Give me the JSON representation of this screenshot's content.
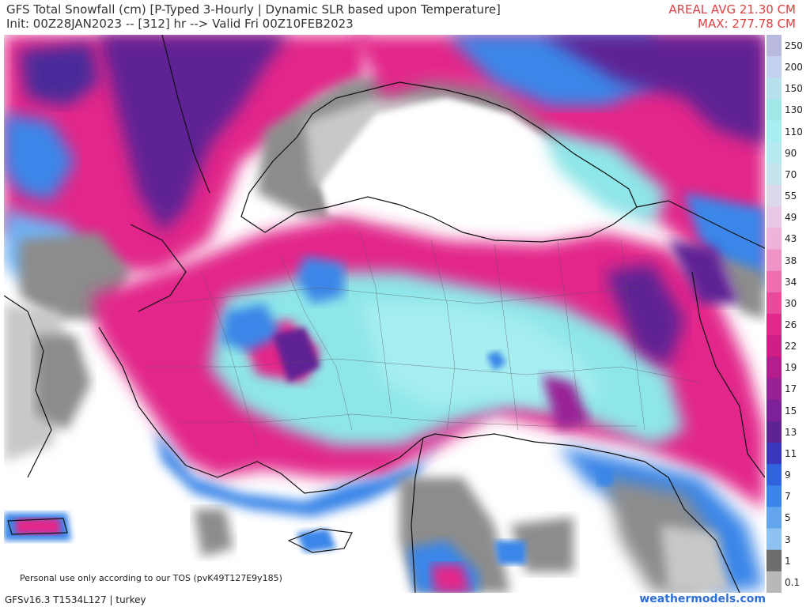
{
  "header": {
    "title": "GFS Total Snowfall (cm) [P-Typed 3-Hourly | Dynamic SLR based upon Temperature]",
    "init_line": "Init: 00Z28JAN2023 -- [312] hr --> Valid Fri 00Z10FEB2023",
    "areal_avg": "AREAL AVG 21.30 CM",
    "max": "MAX: 277.78 CM"
  },
  "map": {
    "region": "turkey",
    "tos_note": "Personal use only according to our TOS (pvK49T127E9y185)",
    "colors": {
      "background": "#ffffff",
      "gray": "#8c8c8c",
      "light_gray": "#c8c8c8",
      "blue": "#3a86e8",
      "light_blue": "#6fb0f0",
      "cyan": "#8ee6e8",
      "pink": "#e8308a",
      "magenta": "#b02eb0",
      "purple": "#4a2a9a",
      "border": "#111111"
    }
  },
  "legend": {
    "unit": "cm",
    "levels": [
      "250",
      "200",
      "150",
      "130",
      "110",
      "90",
      "70",
      "55",
      "49",
      "43",
      "38",
      "34",
      "30",
      "26",
      "22",
      "19",
      "17",
      "15",
      "13",
      "11",
      "9",
      "7",
      "5",
      "3",
      "1",
      "0.1"
    ],
    "colors": [
      "#b9b9e0",
      "#c4d1ee",
      "#b6e0ec",
      "#9ee8e8",
      "#a6eef0",
      "#b4eaf0",
      "#c6e4ee",
      "#dcd8ea",
      "#e8c8e6",
      "#efb2da",
      "#f093c6",
      "#ee6fb0",
      "#ea4a9a",
      "#e2288a",
      "#d01e86",
      "#b21e8e",
      "#982196",
      "#7e209a",
      "#5e2294",
      "#3c36b8",
      "#2f64dc",
      "#3a86e8",
      "#62a4ee",
      "#8ec2f2",
      "#6d6d6d",
      "#b8b8b8"
    ]
  },
  "footer": {
    "model_info": "GFSv16.3 T1534L127 | turkey",
    "site": "weathermodels.com"
  }
}
